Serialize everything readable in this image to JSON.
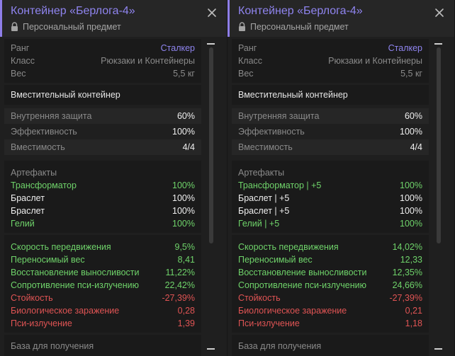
{
  "colors": {
    "accent": "#8f84ef",
    "positive": "#6fd36a",
    "negative": "#e05454",
    "muted": "#8a8a8a"
  },
  "panels": [
    {
      "title": "Контейнер «Берлога-4»",
      "subtitle": "Персональный предмет",
      "info": [
        {
          "label": "Ранг",
          "value": "Сталкер"
        },
        {
          "label": "Класс",
          "value": "Рюкзаки и Контейнеры"
        },
        {
          "label": "Вес",
          "value": "5,5 кг"
        }
      ],
      "container_heading": "Вместительный контейнер",
      "container_stats": [
        {
          "label": "Внутренняя защита",
          "value": "60%"
        },
        {
          "label": "Эффективность",
          "value": "100%"
        },
        {
          "label": "Вместимость",
          "value": "4/4"
        }
      ],
      "artifacts_heading": "Артефакты",
      "artifacts": [
        {
          "label": "Трансформатор",
          "value": "100%"
        },
        {
          "label": "Браслет",
          "value": "100%"
        },
        {
          "label": "Браслет",
          "value": "100%"
        },
        {
          "label": "Гелий",
          "value": "100%"
        }
      ],
      "effects": [
        {
          "label": "Скорость передвижения",
          "value": "9,5%"
        },
        {
          "label": "Переносимый вес",
          "value": "8,41"
        },
        {
          "label": "Восстановление выносливости",
          "value": "11,22%"
        },
        {
          "label": "Сопротивление пси-излучению",
          "value": "22,42%"
        },
        {
          "label": "Стойкость",
          "value": "-27,39%"
        },
        {
          "label": "Биологическое заражение",
          "value": "0,28"
        },
        {
          "label": "Пси-излучение",
          "value": "1,39"
        }
      ],
      "footer": "База для получения"
    },
    {
      "title": "Контейнер «Берлога-4»",
      "subtitle": "Персональный предмет",
      "info": [
        {
          "label": "Ранг",
          "value": "Сталкер"
        },
        {
          "label": "Класс",
          "value": "Рюкзаки и Контейнеры"
        },
        {
          "label": "Вес",
          "value": "5,5 кг"
        }
      ],
      "container_heading": "Вместительный контейнер",
      "container_stats": [
        {
          "label": "Внутренняя защита",
          "value": "60%"
        },
        {
          "label": "Эффективность",
          "value": "100%"
        },
        {
          "label": "Вместимость",
          "value": "4/4"
        }
      ],
      "artifacts_heading": "Артефакты",
      "artifacts": [
        {
          "label": "Трансформатор | +5",
          "value": "100%"
        },
        {
          "label": "Браслет | +5",
          "value": "100%"
        },
        {
          "label": "Браслет | +5",
          "value": "100%"
        },
        {
          "label": "Гелий | +5",
          "value": "100%"
        }
      ],
      "effects": [
        {
          "label": "Скорость передвижения",
          "value": "14,02%"
        },
        {
          "label": "Переносимый вес",
          "value": "12,33"
        },
        {
          "label": "Восстановление выносливости",
          "value": "12,35%"
        },
        {
          "label": "Сопротивление пси-излучению",
          "value": "24,66%"
        },
        {
          "label": "Стойкость",
          "value": "-27,39%"
        },
        {
          "label": "Биологическое заражение",
          "value": "0,21"
        },
        {
          "label": "Пси-излучение",
          "value": "1,18"
        }
      ],
      "footer": "База для получения"
    }
  ]
}
